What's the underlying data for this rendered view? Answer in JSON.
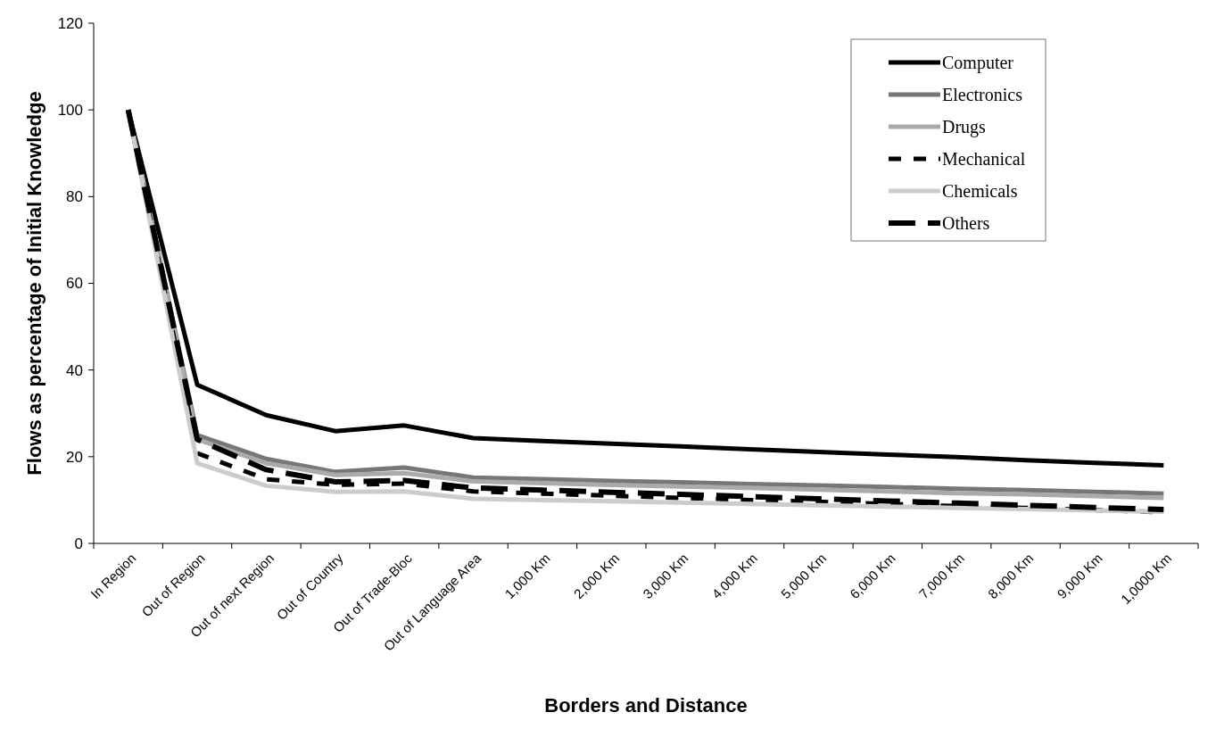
{
  "chart_data": {
    "type": "line",
    "xlabel": "Borders and Distance",
    "ylabel": "Flows as percentage of Initial Knowledge",
    "categories": [
      "In Region",
      "Out of Region",
      "Out of next Region",
      "Out of Country",
      "Out of Trade-Bloc",
      "Out of Language Area",
      "1,000 Km",
      "2,000 Km",
      "3,000 Km",
      "4,000 Km",
      "5,000 Km",
      "6,000 Km",
      "7,000 Km",
      "8,000 Km",
      "9,000 Km",
      "1,0000 Km"
    ],
    "series": [
      {
        "name": "Computer",
        "color": "#000000",
        "line_style": "solid",
        "values": [
          100,
          36.6,
          29.6,
          25.9,
          27.2,
          24.3,
          23.6,
          23.0,
          22.4,
          21.7,
          21.1,
          20.5,
          19.9,
          19.2,
          18.6,
          18.0
        ]
      },
      {
        "name": "Electronics",
        "color": "#777777",
        "line_style": "solid",
        "values": [
          100,
          25,
          19.5,
          16.5,
          17.5,
          15.2,
          14.8,
          14.4,
          14.1,
          13.7,
          13.4,
          13.0,
          12.6,
          12.3,
          11.9,
          11.5
        ]
      },
      {
        "name": "Drugs",
        "color": "#aaaaaa",
        "line_style": "solid",
        "values": [
          100,
          24,
          18.5,
          15.8,
          16.2,
          14.3,
          13.9,
          13.5,
          13.1,
          12.8,
          12.4,
          12.0,
          11.6,
          11.3,
          10.9,
          10.5
        ]
      },
      {
        "name": "Mechanical",
        "color": "#000000",
        "line_style": "dashed",
        "values": [
          100,
          20.8,
          14.8,
          13.5,
          13.8,
          12.0,
          11.5,
          11.0,
          10.5,
          10.0,
          9.6,
          9.1,
          8.6,
          8.2,
          7.7,
          7.2
        ]
      },
      {
        "name": "Chemicals",
        "color": "#cccccc",
        "line_style": "solid",
        "values": [
          100,
          18.5,
          13.3,
          11.9,
          12.0,
          10.3,
          10.0,
          9.7,
          9.4,
          9.1,
          8.8,
          8.5,
          8.2,
          7.9,
          7.6,
          7.3
        ]
      },
      {
        "name": "Others",
        "color": "#000000",
        "line_style": "longdash",
        "values": [
          100,
          24,
          17,
          14.2,
          14.5,
          12.8,
          12.3,
          11.8,
          11.3,
          10.8,
          10.3,
          9.8,
          9.3,
          8.8,
          8.3,
          7.8
        ]
      }
    ],
    "ylim": [
      0,
      120
    ],
    "yticks": [
      0,
      20,
      40,
      60,
      80,
      100,
      120
    ],
    "grid": false,
    "legend": "top right"
  }
}
